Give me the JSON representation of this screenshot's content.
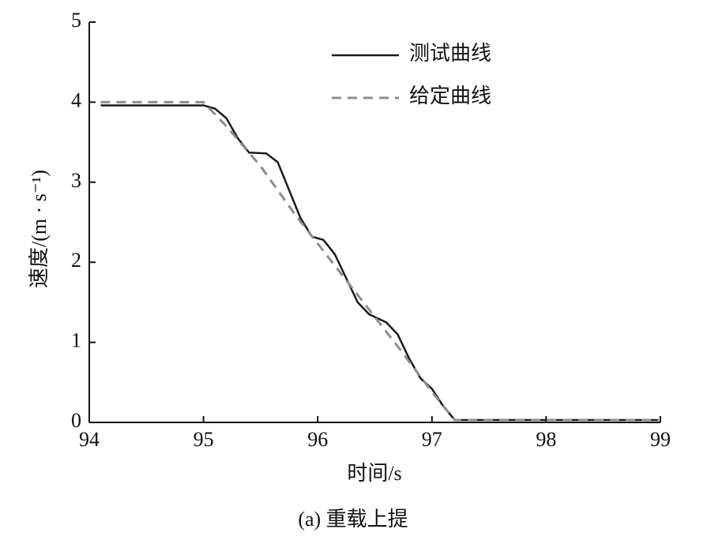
{
  "chart_data": {
    "type": "line",
    "xlabel": "时间/s",
    "ylabel": "速度/(m · s⁻¹)",
    "caption": "(a) 重载上提",
    "xlim": [
      94,
      99
    ],
    "xticks": [
      94,
      95,
      96,
      97,
      98,
      99
    ],
    "ylim": [
      0,
      5
    ],
    "yticks": [
      0,
      1,
      2,
      3,
      4,
      5
    ],
    "legend": "upper right",
    "series": [
      {
        "name": "测试曲线",
        "color": "#1a1a1a",
        "dash": false,
        "x": [
          94.1,
          95.0,
          95.1,
          95.2,
          95.3,
          95.4,
          95.55,
          95.65,
          95.75,
          95.85,
          95.95,
          96.05,
          96.15,
          96.25,
          96.35,
          96.45,
          96.6,
          96.7,
          96.8,
          96.9,
          97.0,
          97.1,
          97.2,
          99.0
        ],
        "values": [
          3.96,
          3.96,
          3.92,
          3.8,
          3.55,
          3.37,
          3.36,
          3.25,
          2.9,
          2.55,
          2.32,
          2.28,
          2.1,
          1.8,
          1.5,
          1.35,
          1.25,
          1.1,
          0.8,
          0.55,
          0.42,
          0.2,
          0.03,
          0.03
        ]
      },
      {
        "name": "给定曲线",
        "color": "#8c8c8c",
        "dash": true,
        "x": [
          94.1,
          95.0,
          95.2,
          95.5,
          95.8,
          96.1,
          96.4,
          96.7,
          97.0,
          97.2,
          99.0
        ],
        "values": [
          4.0,
          4.0,
          3.7,
          3.2,
          2.6,
          2.05,
          1.5,
          0.95,
          0.38,
          0.03,
          0.03
        ]
      }
    ]
  }
}
